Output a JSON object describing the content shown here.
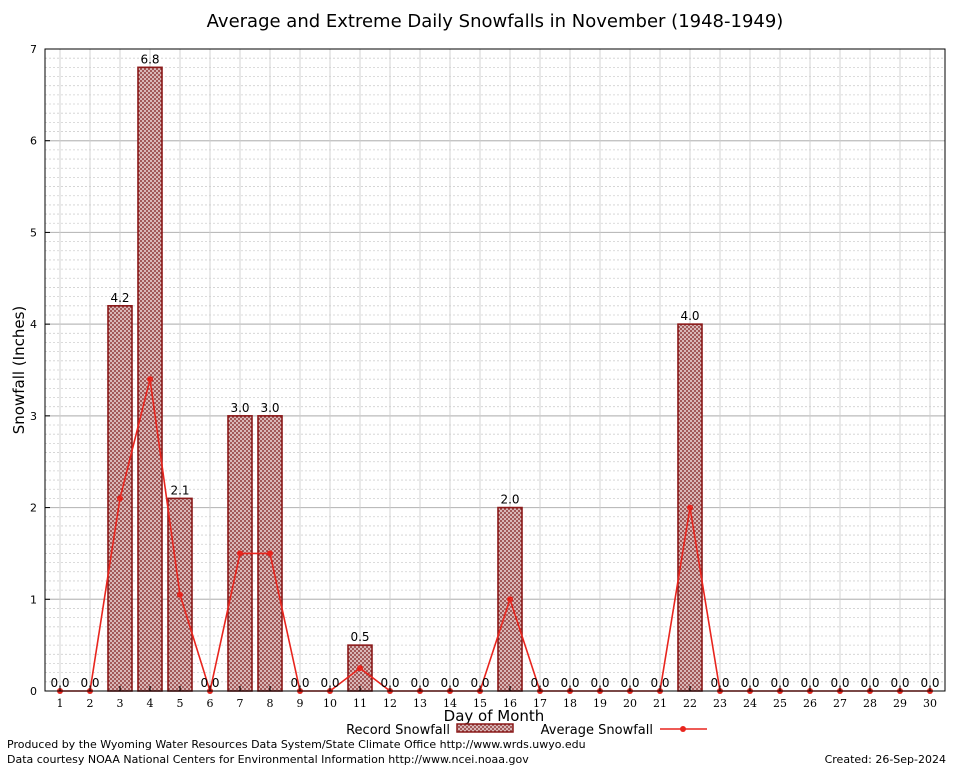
{
  "chart_data": {
    "type": "bar",
    "title": "Average and Extreme Daily Snowfalls in November (1948-1949)",
    "xlabel": "Day of Month",
    "ylabel": "Snowfall (Inches)",
    "ylim": [
      0,
      7
    ],
    "yticks": [
      "0",
      "1",
      "2",
      "3",
      "4",
      "5",
      "6",
      "7"
    ],
    "grid": true,
    "categories": [
      "1",
      "2",
      "3",
      "4",
      "5",
      "6",
      "7",
      "8",
      "9",
      "10",
      "11",
      "12",
      "13",
      "14",
      "15",
      "16",
      "17",
      "18",
      "19",
      "20",
      "21",
      "22",
      "23",
      "24",
      "25",
      "26",
      "27",
      "28",
      "29",
      "30"
    ],
    "series": [
      {
        "name": "Record Snowfall",
        "kind": "bar",
        "color": "#8b1a1a",
        "values": [
          0,
          0,
          4.2,
          6.8,
          2.1,
          0,
          3.0,
          3.0,
          0,
          0,
          0.5,
          0,
          0,
          0,
          0,
          2.0,
          0,
          0,
          0,
          0,
          0,
          4.0,
          0,
          0,
          0,
          0,
          0,
          0,
          0,
          0
        ],
        "labels": [
          "0.0",
          "0.0",
          "4.2",
          "6.8",
          "2.1",
          "0.0",
          "3.0",
          "3.0",
          "0.0",
          "0.0",
          "0.5",
          "0.0",
          "0.0",
          "0.0",
          "0.0",
          "2.0",
          "0.0",
          "0.0",
          "0.0",
          "0.0",
          "0.0",
          "4.0",
          "0.0",
          "0.0",
          "0.0",
          "0.0",
          "0.0",
          "0.0",
          "0.0",
          "0.0"
        ]
      },
      {
        "name": "Average Snowfall",
        "kind": "line",
        "color": "#e8251e",
        "values": [
          0,
          0,
          2.1,
          3.4,
          1.05,
          0,
          1.5,
          1.5,
          0,
          0,
          0.25,
          0,
          0,
          0,
          0,
          1.0,
          0,
          0,
          0,
          0,
          0,
          2.0,
          0,
          0,
          0,
          0,
          0,
          0,
          0,
          0
        ]
      }
    ],
    "legend_position": "bottom-center"
  },
  "footer": {
    "produced_by": "Produced by the Wyoming Water Resources Data System/State Climate Office http://www.wrds.uwyo.edu",
    "courtesy": "Data courtesy NOAA National Centers for Environmental Information http://www.ncei.noaa.gov",
    "created": "Created: 26-Sep-2024"
  }
}
